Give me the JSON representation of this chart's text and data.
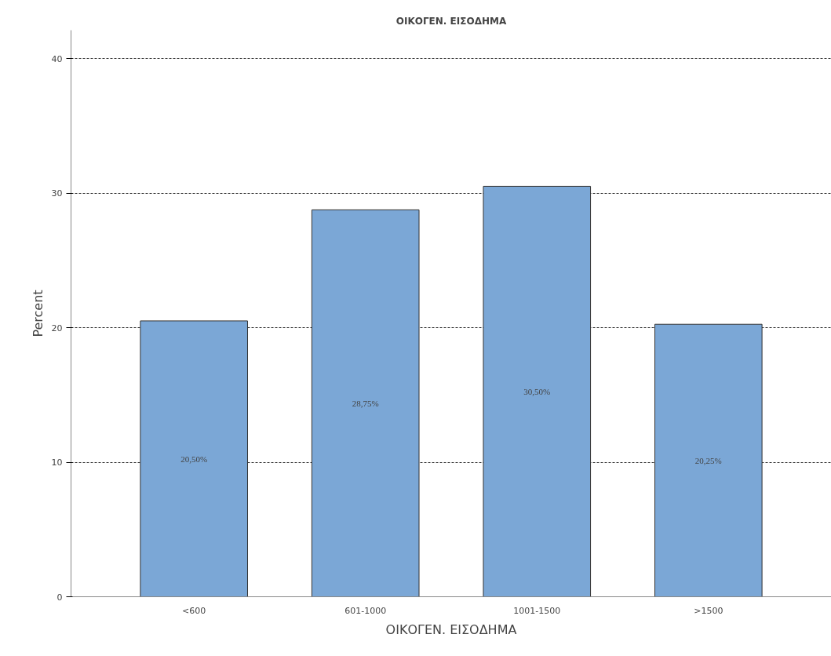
{
  "chart_data": {
    "type": "bar",
    "title": "ΟΙΚΟΓΕΝ. ΕΙΣΟΔΗΜΑ",
    "xlabel": "ΟΙΚΟΓΕΝ. ΕΙΣΟΔΗΜΑ",
    "ylabel": "Percent",
    "categories": [
      "<600",
      "601-1000",
      "1001-1500",
      ">1500"
    ],
    "values": [
      20.5,
      28.75,
      30.5,
      20.25
    ],
    "value_labels": [
      "20,50%",
      "28,75%",
      "30,50%",
      "20,25%"
    ],
    "color": "#7ba7d6",
    "ylim": [
      0,
      42.1
    ],
    "yticks": [
      0,
      10,
      20,
      30,
      40
    ],
    "grid": "y"
  }
}
